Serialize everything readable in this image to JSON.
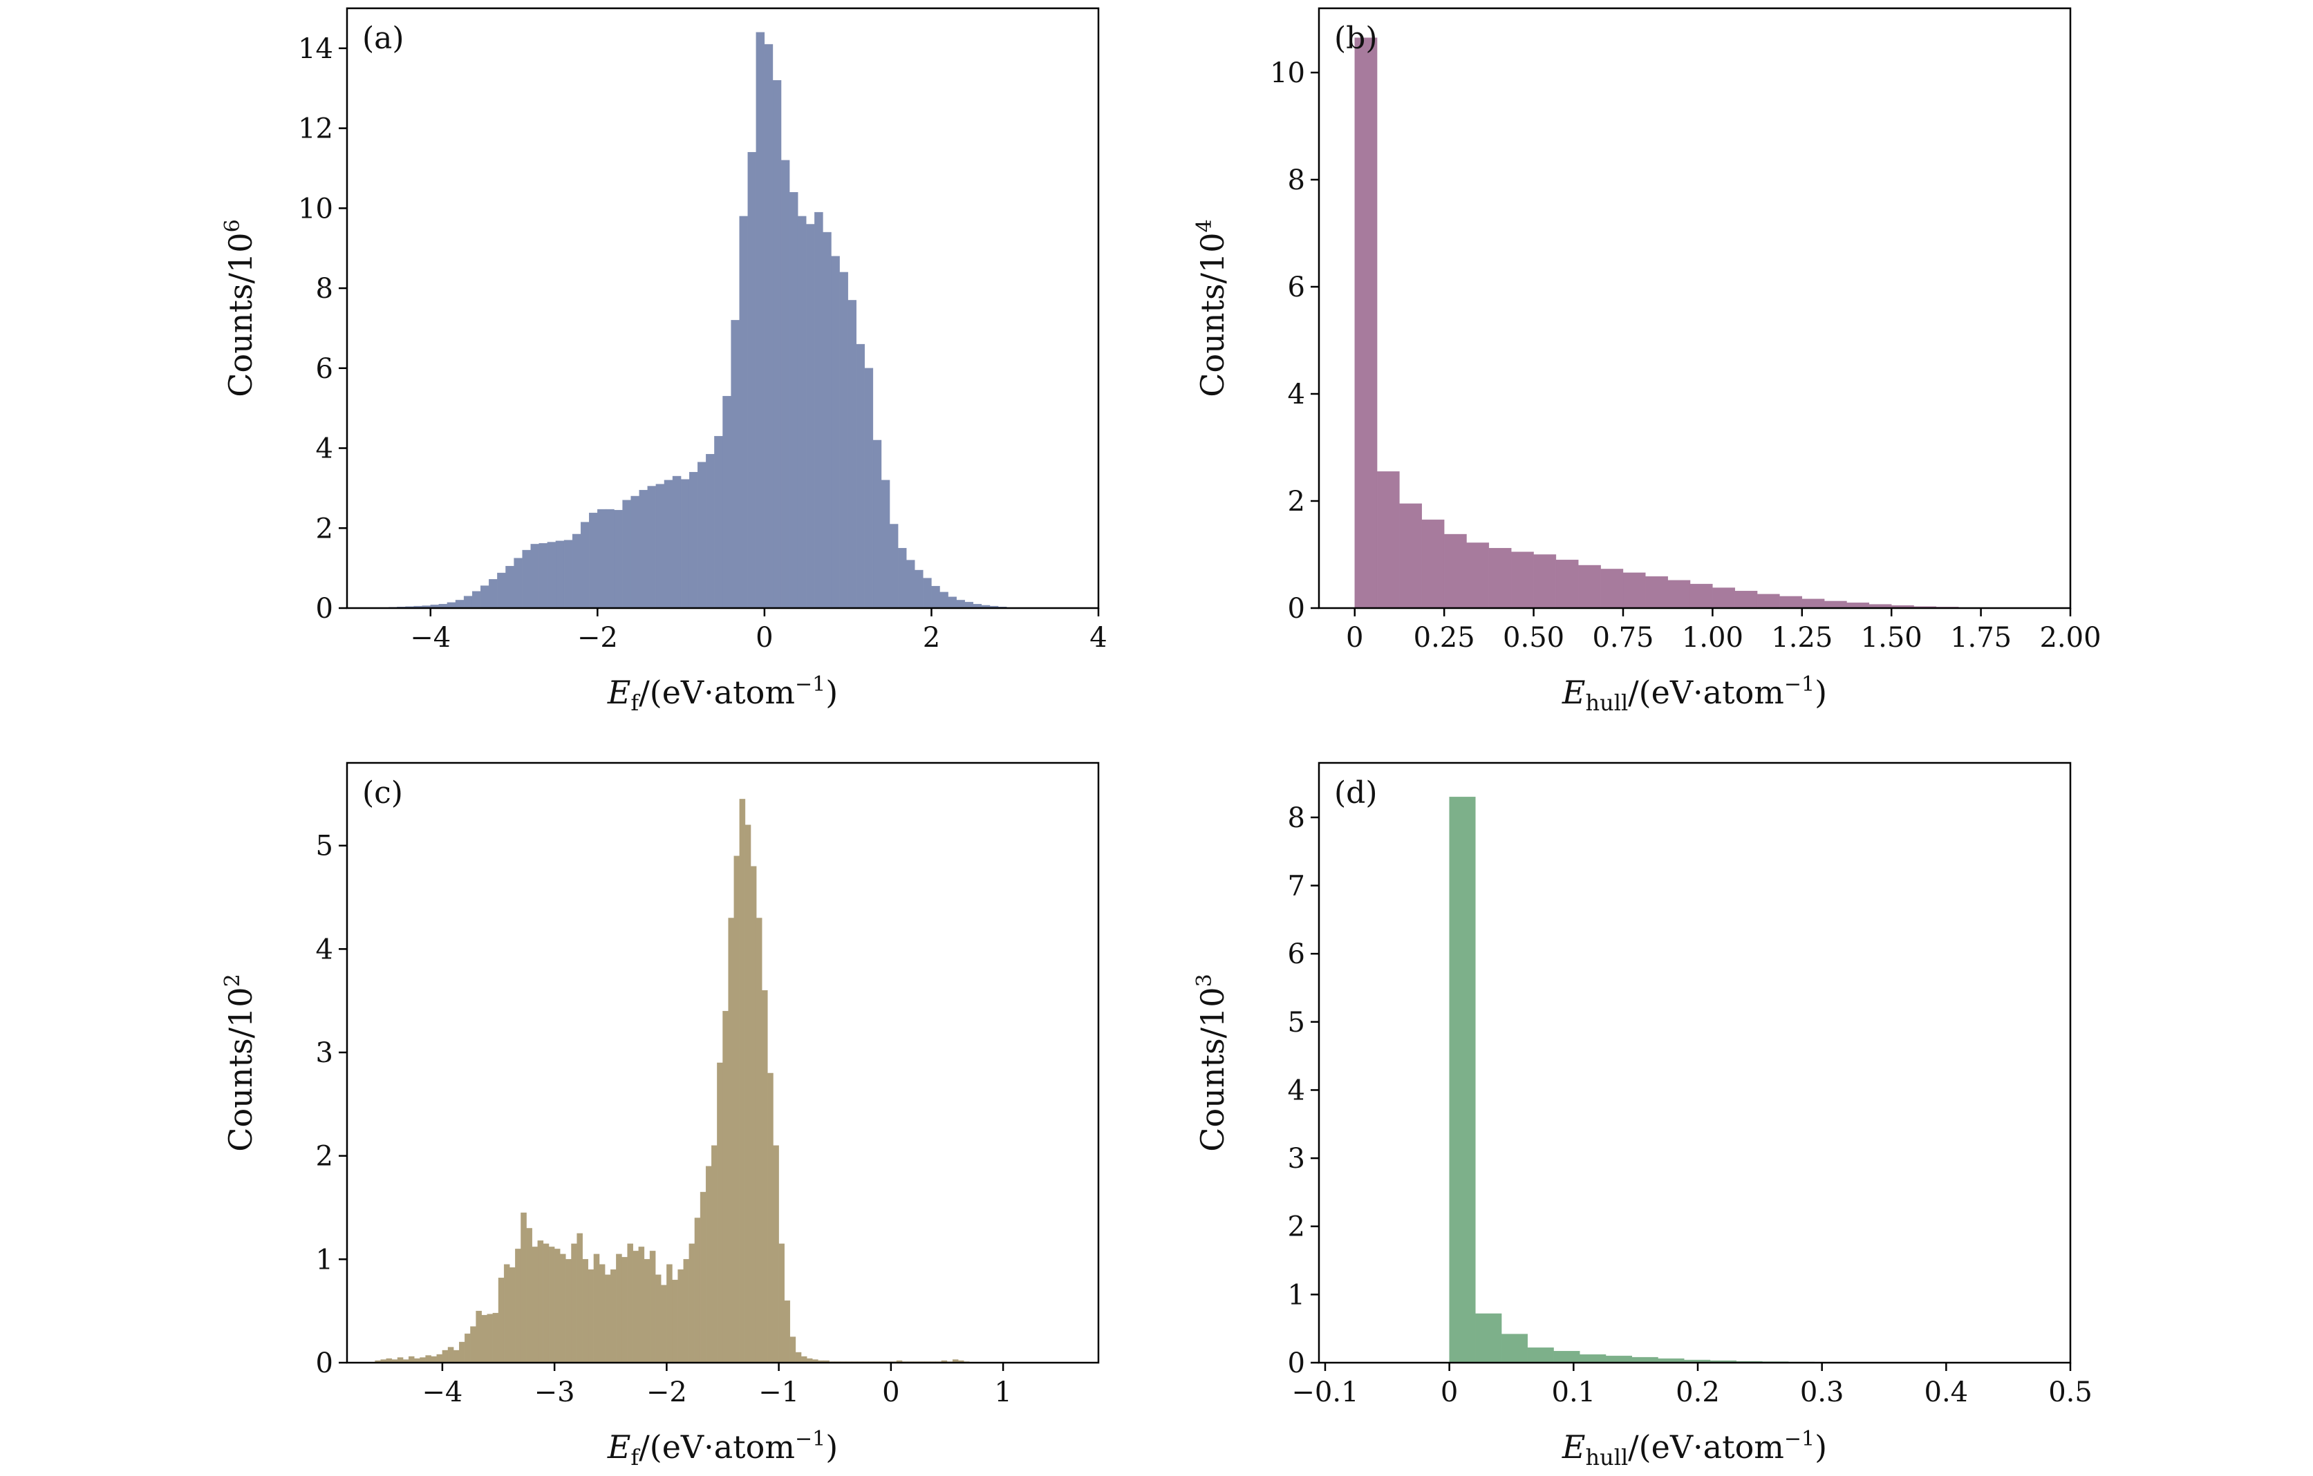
{
  "chart_data": [
    {
      "panel": "(a)",
      "type": "bar",
      "histogram": true,
      "color": "#7f8db2",
      "xlabel": "E_f/(eV·atom⁻¹)",
      "xlabel_parts": {
        "symbol": "E",
        "sub": "f",
        "rest": "/(eV·atom",
        "sup": "−1",
        "close": ")"
      },
      "ylabel": "Counts/10^6",
      "ylabel_parts": {
        "text": "Counts/10",
        "sup": "6"
      },
      "xlim": [
        -5,
        4
      ],
      "ylim": [
        0,
        15
      ],
      "xticks": [
        -4,
        -2,
        0,
        2,
        4
      ],
      "xtick_labels": [
        "−4",
        "−2",
        "0",
        "2",
        "4"
      ],
      "yticks": [
        0,
        2,
        4,
        6,
        8,
        10,
        12,
        14
      ],
      "ytick_labels": [
        "0",
        "2",
        "4",
        "6",
        "8",
        "10",
        "12",
        "14"
      ],
      "bin_start": -4.5,
      "bin_width": 0.1,
      "values": [
        0.02,
        0.03,
        0.04,
        0.05,
        0.06,
        0.08,
        0.1,
        0.14,
        0.2,
        0.3,
        0.42,
        0.56,
        0.72,
        0.88,
        1.05,
        1.25,
        1.45,
        1.6,
        1.62,
        1.65,
        1.68,
        1.7,
        1.85,
        2.15,
        2.38,
        2.47,
        2.47,
        2.45,
        2.7,
        2.8,
        2.95,
        3.05,
        3.1,
        3.2,
        3.3,
        3.22,
        3.4,
        3.65,
        3.85,
        4.3,
        5.3,
        7.2,
        9.8,
        11.4,
        14.4,
        14.1,
        13.2,
        11.2,
        10.4,
        9.8,
        9.6,
        9.9,
        9.4,
        8.8,
        8.4,
        7.7,
        6.6,
        6.0,
        4.2,
        3.2,
        2.1,
        1.5,
        1.2,
        0.95,
        0.75,
        0.55,
        0.4,
        0.28,
        0.2,
        0.15,
        0.1,
        0.07,
        0.05,
        0.03
      ]
    },
    {
      "panel": "(b)",
      "type": "bar",
      "histogram": true,
      "color": "#a77b9d",
      "xlabel": "E_hull/(eV·atom⁻¹)",
      "xlabel_parts": {
        "symbol": "E",
        "sub": "hull",
        "rest": "/(eV·atom",
        "sup": "−1",
        "close": ")"
      },
      "ylabel": "Counts/10^4",
      "ylabel_parts": {
        "text": "Counts/10",
        "sup": "4"
      },
      "xlim": [
        -0.1,
        2.0
      ],
      "ylim": [
        0,
        11.2
      ],
      "xticks": [
        0,
        0.25,
        0.5,
        0.75,
        1.0,
        1.25,
        1.5,
        1.75,
        2.0
      ],
      "xtick_labels": [
        "0",
        "0.25",
        "0.50",
        "0.75",
        "1.00",
        "1.25",
        "1.50",
        "1.75",
        "2.00"
      ],
      "yticks": [
        0,
        2,
        4,
        6,
        8,
        10
      ],
      "ytick_labels": [
        "0",
        "2",
        "4",
        "6",
        "8",
        "10"
      ],
      "bin_start": 0,
      "bin_width": 0.0625,
      "values": [
        10.65,
        2.55,
        1.95,
        1.65,
        1.38,
        1.22,
        1.12,
        1.05,
        1.0,
        0.9,
        0.8,
        0.73,
        0.66,
        0.59,
        0.52,
        0.45,
        0.38,
        0.32,
        0.26,
        0.22,
        0.17,
        0.13,
        0.1,
        0.07,
        0.05,
        0.03,
        0.02,
        0.01
      ]
    },
    {
      "panel": "(c)",
      "type": "bar",
      "histogram": true,
      "color": "#ae9f7a",
      "xlabel": "E_f/(eV·atom⁻¹)",
      "xlabel_parts": {
        "symbol": "E",
        "sub": "f",
        "rest": "/(eV·atom",
        "sup": "−1",
        "close": ")"
      },
      "ylabel": "Counts/10^2",
      "ylabel_parts": {
        "text": "Counts/10",
        "sup": "2"
      },
      "xlim": [
        -4.85,
        1.85
      ],
      "ylim": [
        0,
        5.8
      ],
      "xticks": [
        -4,
        -3,
        -2,
        -1,
        0,
        1
      ],
      "xtick_labels": [
        "−4",
        "−3",
        "−2",
        "−1",
        "0",
        "1"
      ],
      "yticks": [
        0,
        1,
        2,
        3,
        4,
        5
      ],
      "ytick_labels": [
        "0",
        "1",
        "2",
        "3",
        "4",
        "5"
      ],
      "bin_start": -4.6,
      "bin_width": 0.05,
      "values": [
        0.02,
        0.03,
        0.04,
        0.03,
        0.05,
        0.03,
        0.06,
        0.04,
        0.05,
        0.07,
        0.06,
        0.08,
        0.12,
        0.15,
        0.12,
        0.2,
        0.28,
        0.35,
        0.5,
        0.46,
        0.47,
        0.48,
        0.82,
        0.95,
        0.92,
        1.1,
        1.45,
        1.3,
        1.12,
        1.18,
        1.15,
        1.12,
        1.1,
        1.05,
        1.0,
        1.15,
        1.25,
        1.0,
        0.9,
        1.05,
        0.95,
        0.85,
        0.9,
        1.05,
        1.02,
        1.15,
        1.08,
        1.12,
        1.0,
        1.08,
        0.85,
        0.75,
        0.95,
        0.8,
        0.9,
        1.0,
        1.15,
        1.4,
        1.65,
        1.9,
        2.1,
        2.9,
        3.4,
        4.3,
        4.9,
        5.45,
        5.2,
        4.8,
        4.3,
        3.6,
        2.8,
        2.1,
        1.15,
        0.6,
        0.25,
        0.1,
        0.06,
        0.04,
        0.03,
        0.02,
        0.02,
        0.01,
        0.01,
        0.01,
        0.01,
        0.01,
        0.01,
        0.01,
        0.01,
        0.01,
        0.01,
        0.01,
        0.01,
        0.02,
        0.01,
        0.01,
        0.01,
        0.01,
        0.01,
        0.01,
        0.01,
        0.02,
        0.01,
        0.03,
        0.02,
        0.01
      ]
    },
    {
      "panel": "(d)",
      "type": "bar",
      "histogram": true,
      "color": "#7db08a",
      "xlabel": "E_hull/(eV·atom⁻¹)",
      "xlabel_parts": {
        "symbol": "E",
        "sub": "hull",
        "rest": "/(eV·atom",
        "sup": "−1",
        "close": ")"
      },
      "ylabel": "Counts/10^3",
      "ylabel_parts": {
        "text": "Counts/10",
        "sup": "3"
      },
      "xlim": [
        -0.105,
        0.5
      ],
      "ylim": [
        0,
        8.8
      ],
      "xticks": [
        -0.1,
        0,
        0.1,
        0.2,
        0.3,
        0.4,
        0.5
      ],
      "xtick_labels": [
        "−0.1",
        "0",
        "0.1",
        "0.2",
        "0.3",
        "0.4",
        "0.5"
      ],
      "yticks": [
        0,
        1,
        2,
        3,
        4,
        5,
        6,
        7,
        8
      ],
      "ytick_labels": [
        "0",
        "1",
        "2",
        "3",
        "4",
        "5",
        "6",
        "7",
        "8"
      ],
      "bin_start": 0,
      "bin_width": 0.021,
      "values": [
        8.3,
        0.72,
        0.42,
        0.22,
        0.17,
        0.12,
        0.1,
        0.08,
        0.06,
        0.04,
        0.03,
        0.02,
        0.015,
        0.01,
        0.008,
        0.005
      ]
    }
  ]
}
